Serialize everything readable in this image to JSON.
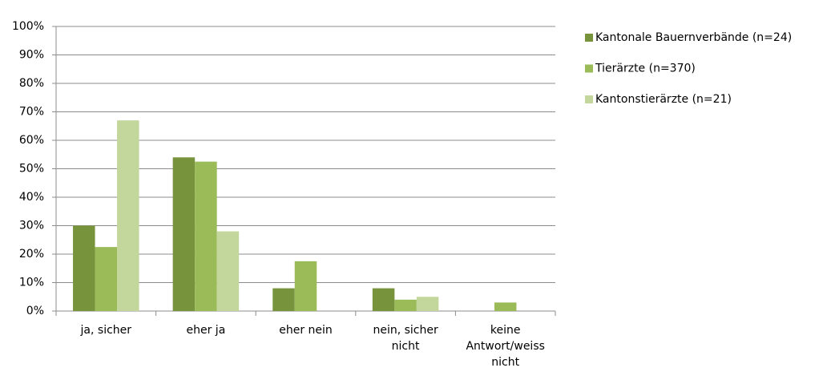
{
  "chart_data": {
    "type": "bar",
    "categories": [
      "ja, sicher",
      "eher ja",
      "eher nein",
      "nein, sicher nicht",
      "keine Antwort/weiss nicht"
    ],
    "series": [
      {
        "name": "Kantonale Bauernverbände (n=24)",
        "color": "#77933c",
        "values": [
          30,
          54,
          8,
          8,
          0
        ]
      },
      {
        "name": "Tierärzte (n=370)",
        "color": "#9bbb59",
        "values": [
          22.5,
          52.5,
          17.5,
          4,
          3
        ]
      },
      {
        "name": "Kantonstierärzte (n=21)",
        "color": "#c3d69b",
        "values": [
          67,
          28,
          0,
          5,
          0
        ]
      }
    ],
    "ylim": [
      0,
      100
    ],
    "yticks": [
      {
        "value": 0,
        "label": "0%"
      },
      {
        "value": 10,
        "label": "10%"
      },
      {
        "value": 20,
        "label": "20%"
      },
      {
        "value": 30,
        "label": "30%"
      },
      {
        "value": 40,
        "label": "40%"
      },
      {
        "value": 50,
        "label": "50%"
      },
      {
        "value": 60,
        "label": "60%"
      },
      {
        "value": 70,
        "label": "70%"
      },
      {
        "value": 80,
        "label": "80%"
      },
      {
        "value": 90,
        "label": "90%"
      },
      {
        "value": 100,
        "label": "100%"
      }
    ],
    "grid": true,
    "legend": "right"
  }
}
